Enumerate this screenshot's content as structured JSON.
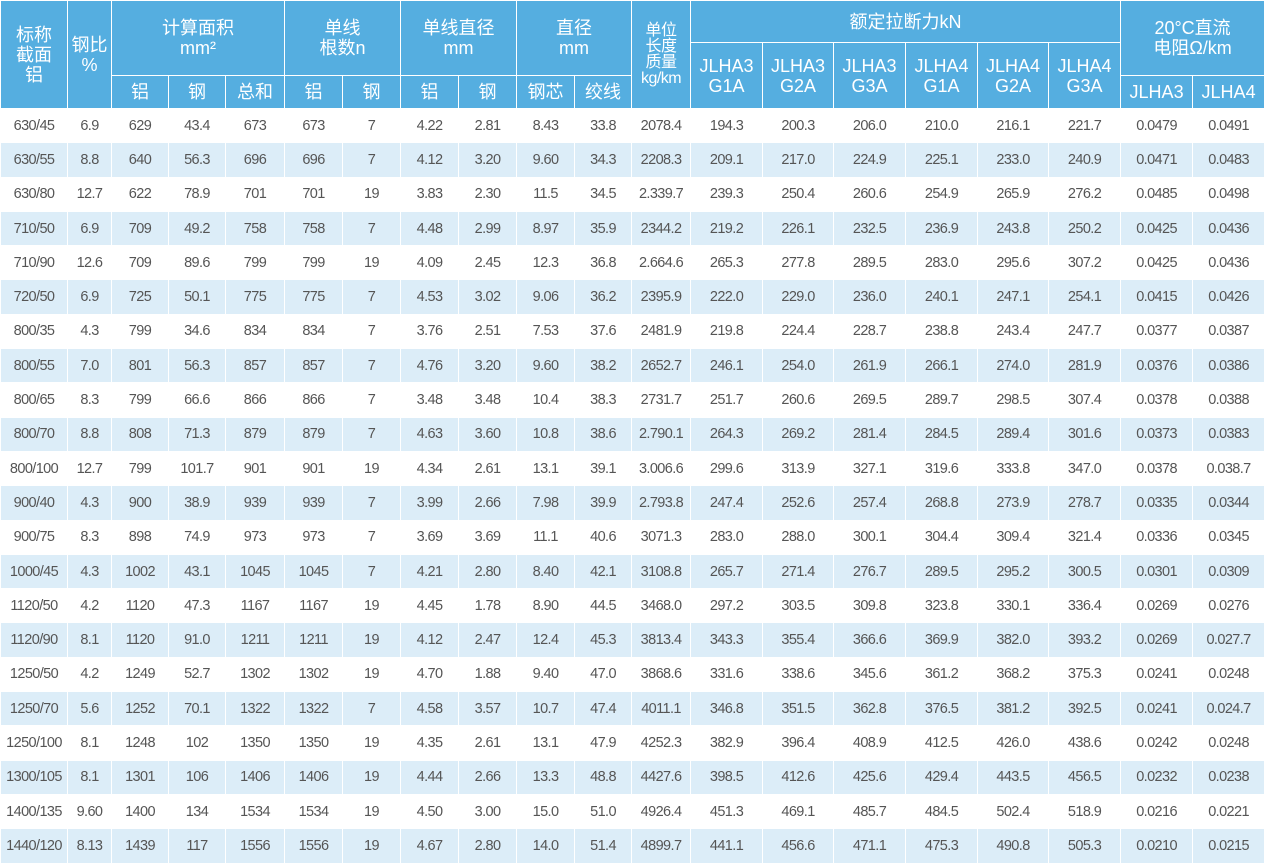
{
  "header": {
    "section": "标称\n截面\n铝",
    "ratio": "钢比\n%",
    "area": "计算面积\nmm²",
    "area_sub": [
      "铝",
      "钢",
      "总和"
    ],
    "count": "单线\n根数n",
    "count_sub": [
      "铝",
      "钢"
    ],
    "wire_dia": "单线直径\nmm",
    "wire_dia_sub": [
      "铝",
      "钢"
    ],
    "dia": "直径\nmm",
    "dia_sub": [
      "钢芯",
      "绞线"
    ],
    "mass": "单位\n长度\n质量\nkg/km",
    "strength": "额定拉断力kN",
    "strength_sub": [
      "JLHA3\nG1A",
      "JLHA3\nG2A",
      "JLHA3\nG3A",
      "JLHA4\nG1A",
      "JLHA4\nG2A",
      "JLHA4\nG3A"
    ],
    "resistance": "20°C直流\n电阻Ω/km",
    "resistance_sub": [
      "JLHA3",
      "JLHA4"
    ]
  },
  "table": {
    "rows": [
      [
        "630/45",
        "6.9",
        "629",
        "43.4",
        "673",
        "673",
        "7",
        "4.22",
        "2.81",
        "8.43",
        "33.8",
        "2078.4",
        "194.3",
        "200.3",
        "206.0",
        "210.0",
        "216.1",
        "221.7",
        "0.0479",
        "0.0491"
      ],
      [
        "630/55",
        "8.8",
        "640",
        "56.3",
        "696",
        "696",
        "7",
        "4.12",
        "3.20",
        "9.60",
        "34.3",
        "2208.3",
        "209.1",
        "217.0",
        "224.9",
        "225.1",
        "233.0",
        "240.9",
        "0.0471",
        "0.0483"
      ],
      [
        "630/80",
        "12.7",
        "622",
        "78.9",
        "701",
        "701",
        "19",
        "3.83",
        "2.30",
        "11.5",
        "34.5",
        "2.339.7",
        "239.3",
        "250.4",
        "260.6",
        "254.9",
        "265.9",
        "276.2",
        "0.0485",
        "0.0498"
      ],
      [
        "710/50",
        "6.9",
        "709",
        "49.2",
        "758",
        "758",
        "7",
        "4.48",
        "2.99",
        "8.97",
        "35.9",
        "2344.2",
        "219.2",
        "226.1",
        "232.5",
        "236.9",
        "243.8",
        "250.2",
        "0.0425",
        "0.0436"
      ],
      [
        "710/90",
        "12.6",
        "709",
        "89.6",
        "799",
        "799",
        "19",
        "4.09",
        "2.45",
        "12.3",
        "36.8",
        "2.664.6",
        "265.3",
        "277.8",
        "289.5",
        "283.0",
        "295.6",
        "307.2",
        "0.0425",
        "0.0436"
      ],
      [
        "720/50",
        "6.9",
        "725",
        "50.1",
        "775",
        "775",
        "7",
        "4.53",
        "3.02",
        "9.06",
        "36.2",
        "2395.9",
        "222.0",
        "229.0",
        "236.0",
        "240.1",
        "247.1",
        "254.1",
        "0.0415",
        "0.0426"
      ],
      [
        "800/35",
        "4.3",
        "799",
        "34.6",
        "834",
        "834",
        "7",
        "3.76",
        "2.51",
        "7.53",
        "37.6",
        "2481.9",
        "219.8",
        "224.4",
        "228.7",
        "238.8",
        "243.4",
        "247.7",
        "0.0377",
        "0.0387"
      ],
      [
        "800/55",
        "7.0",
        "801",
        "56.3",
        "857",
        "857",
        "7",
        "4.76",
        "3.20",
        "9.60",
        "38.2",
        "2652.7",
        "246.1",
        "254.0",
        "261.9",
        "266.1",
        "274.0",
        "281.9",
        "0.0376",
        "0.0386"
      ],
      [
        "800/65",
        "8.3",
        "799",
        "66.6",
        "866",
        "866",
        "7",
        "3.48",
        "3.48",
        "10.4",
        "38.3",
        "2731.7",
        "251.7",
        "260.6",
        "269.5",
        "289.7",
        "298.5",
        "307.4",
        "0.0378",
        "0.0388"
      ],
      [
        "800/70",
        "8.8",
        "808",
        "71.3",
        "879",
        "879",
        "7",
        "4.63",
        "3.60",
        "10.8",
        "38.6",
        "2.790.1",
        "264.3",
        "269.2",
        "281.4",
        "284.5",
        "289.4",
        "301.6",
        "0.0373",
        "0.0383"
      ],
      [
        "800/100",
        "12.7",
        "799",
        "101.7",
        "901",
        "901",
        "19",
        "4.34",
        "2.61",
        "13.1",
        "39.1",
        "3.006.6",
        "299.6",
        "313.9",
        "327.1",
        "319.6",
        "333.8",
        "347.0",
        "0.0378",
        "0.038.7"
      ],
      [
        "900/40",
        "4.3",
        "900",
        "38.9",
        "939",
        "939",
        "7",
        "3.99",
        "2.66",
        "7.98",
        "39.9",
        "2.793.8",
        "247.4",
        "252.6",
        "257.4",
        "268.8",
        "273.9",
        "278.7",
        "0.0335",
        "0.0344"
      ],
      [
        "900/75",
        "8.3",
        "898",
        "74.9",
        "973",
        "973",
        "7",
        "3.69",
        "3.69",
        "11.1",
        "40.6",
        "3071.3",
        "283.0",
        "288.0",
        "300.1",
        "304.4",
        "309.4",
        "321.4",
        "0.0336",
        "0.0345"
      ],
      [
        "1000/45",
        "4.3",
        "1002",
        "43.1",
        "1045",
        "1045",
        "7",
        "4.21",
        "2.80",
        "8.40",
        "42.1",
        "3108.8",
        "265.7",
        "271.4",
        "276.7",
        "289.5",
        "295.2",
        "300.5",
        "0.0301",
        "0.0309"
      ],
      [
        "1120/50",
        "4.2",
        "1120",
        "47.3",
        "1167",
        "1167",
        "19",
        "4.45",
        "1.78",
        "8.90",
        "44.5",
        "3468.0",
        "297.2",
        "303.5",
        "309.8",
        "323.8",
        "330.1",
        "336.4",
        "0.0269",
        "0.0276"
      ],
      [
        "1120/90",
        "8.1",
        "1120",
        "91.0",
        "1211",
        "1211",
        "19",
        "4.12",
        "2.47",
        "12.4",
        "45.3",
        "3813.4",
        "343.3",
        "355.4",
        "366.6",
        "369.9",
        "382.0",
        "393.2",
        "0.0269",
        "0.027.7"
      ],
      [
        "1250/50",
        "4.2",
        "1249",
        "52.7",
        "1302",
        "1302",
        "19",
        "4.70",
        "1.88",
        "9.40",
        "47.0",
        "3868.6",
        "331.6",
        "338.6",
        "345.6",
        "361.2",
        "368.2",
        "375.3",
        "0.0241",
        "0.0248"
      ],
      [
        "1250/70",
        "5.6",
        "1252",
        "70.1",
        "1322",
        "1322",
        "7",
        "4.58",
        "3.57",
        "10.7",
        "47.4",
        "4011.1",
        "346.8",
        "351.5",
        "362.8",
        "376.5",
        "381.2",
        "392.5",
        "0.0241",
        "0.024.7"
      ],
      [
        "1250/100",
        "8.1",
        "1248",
        "102",
        "1350",
        "1350",
        "19",
        "4.35",
        "2.61",
        "13.1",
        "47.9",
        "4252.3",
        "382.9",
        "396.4",
        "408.9",
        "412.5",
        "426.0",
        "438.6",
        "0.0242",
        "0.0248"
      ],
      [
        "1300/105",
        "8.1",
        "1301",
        "106",
        "1406",
        "1406",
        "19",
        "4.44",
        "2.66",
        "13.3",
        "48.8",
        "4427.6",
        "398.5",
        "412.6",
        "425.6",
        "429.4",
        "443.5",
        "456.5",
        "0.0232",
        "0.0238"
      ],
      [
        "1400/135",
        "9.60",
        "1400",
        "134",
        "1534",
        "1534",
        "19",
        "4.50",
        "3.00",
        "15.0",
        "51.0",
        "4926.4",
        "451.3",
        "469.1",
        "485.7",
        "484.5",
        "502.4",
        "518.9",
        "0.0216",
        "0.0221"
      ],
      [
        "1440/120",
        "8.13",
        "1439",
        "117",
        "1556",
        "1556",
        "19",
        "4.67",
        "2.80",
        "14.0",
        "51.4",
        "4899.7",
        "441.1",
        "456.6",
        "471.1",
        "475.3",
        "490.8",
        "505.3",
        "0.0210",
        "0.0215"
      ]
    ]
  }
}
